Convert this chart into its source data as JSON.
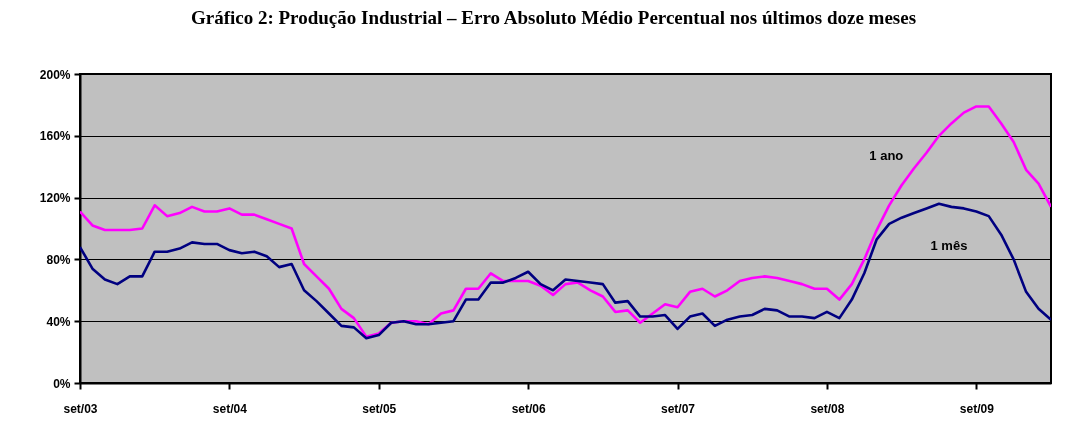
{
  "chart_data": {
    "type": "line",
    "title": "Gráfico 2: Produção Industrial – Erro Absoluto Médio Percentual nos últimos doze meses",
    "categories": [
      "set/03",
      null,
      null,
      null,
      null,
      null,
      null,
      null,
      null,
      null,
      null,
      null,
      "set/04",
      null,
      null,
      null,
      null,
      null,
      null,
      null,
      null,
      null,
      null,
      null,
      "set/05",
      null,
      null,
      null,
      null,
      null,
      null,
      null,
      null,
      null,
      null,
      null,
      "set/06",
      null,
      null,
      null,
      null,
      null,
      null,
      null,
      null,
      null,
      null,
      null,
      "set/07",
      null,
      null,
      null,
      null,
      null,
      null,
      null,
      null,
      null,
      null,
      null,
      "set/08",
      null,
      null,
      null,
      null,
      null,
      null,
      null,
      null,
      null,
      null,
      null,
      "set/09",
      null,
      null,
      null,
      null,
      null,
      null
    ],
    "series": [
      {
        "name": "1 ano",
        "color": "#ff00ff",
        "values": [
          111,
          102,
          99,
          99,
          99,
          100,
          115,
          108,
          110,
          114,
          111,
          111,
          113,
          109,
          109,
          106,
          103,
          100,
          77,
          69,
          61,
          48,
          42,
          30,
          32,
          39,
          40,
          40,
          38,
          45,
          47,
          61,
          61,
          71,
          66,
          66,
          66,
          63,
          57,
          64,
          65,
          60,
          56,
          46,
          47,
          39,
          45,
          51,
          49,
          59,
          61,
          56,
          60,
          66,
          68,
          69,
          68,
          66,
          64,
          61,
          61,
          54,
          64,
          80,
          99,
          115,
          128,
          139,
          149,
          160,
          168,
          175,
          179,
          179,
          168,
          156,
          138,
          129,
          114
        ]
      },
      {
        "name": "1 mês",
        "color": "#000080",
        "values": [
          88,
          74,
          67,
          64,
          69,
          69,
          85,
          85,
          87,
          91,
          90,
          90,
          86,
          84,
          85,
          82,
          75,
          77,
          60,
          53,
          45,
          37,
          36,
          29,
          31,
          39,
          40,
          38,
          38,
          39,
          40,
          54,
          54,
          65,
          65,
          68,
          72,
          64,
          60,
          67,
          66,
          65,
          64,
          52,
          53,
          43,
          43,
          44,
          35,
          43,
          45,
          37,
          41,
          43,
          44,
          48,
          47,
          43,
          43,
          42,
          46,
          42,
          54,
          71,
          93,
          103,
          107,
          110,
          113,
          116,
          114,
          113,
          111,
          108,
          96,
          80,
          59,
          48,
          41
        ]
      }
    ],
    "ylim": [
      0,
      200
    ],
    "yticks": [
      {
        "value": 0,
        "label": "0%"
      },
      {
        "value": 40,
        "label": "40%"
      },
      {
        "value": 80,
        "label": "80%"
      },
      {
        "value": 120,
        "label": "120%"
      },
      {
        "value": 160,
        "label": "160%"
      },
      {
        "value": 200,
        "label": "200%"
      }
    ],
    "grid": "y",
    "legend": false,
    "marker": "none",
    "line_style": "solid"
  }
}
